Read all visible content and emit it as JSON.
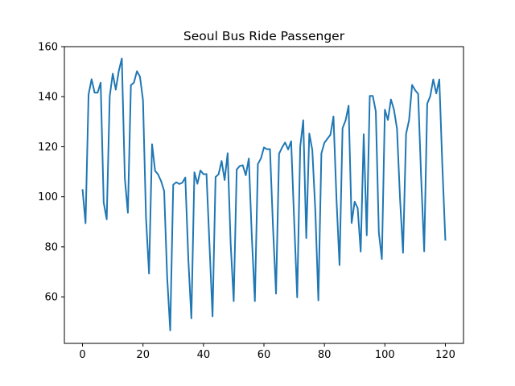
{
  "chart_data": {
    "type": "line",
    "title": "Seoul Bus Ride Passenger",
    "xlabel": "",
    "ylabel": "",
    "xlim": [
      -6,
      126
    ],
    "ylim": [
      41.4,
      160
    ],
    "x_ticks": [
      0,
      20,
      40,
      60,
      80,
      100,
      120
    ],
    "y_ticks": [
      60,
      80,
      100,
      120,
      140,
      160
    ],
    "grid": false,
    "legend": "none",
    "line_color": "#1f77b4",
    "series": [
      {
        "values": [
          103.0,
          89.4,
          140.8,
          147.0,
          141.6,
          141.6,
          145.6,
          97.7,
          91.0,
          140.1,
          149.2,
          142.8,
          150.3,
          155.3,
          107.3,
          93.6,
          144.6,
          145.6,
          150.2,
          148.0,
          138.6,
          91.6,
          69.3,
          121.0,
          110.4,
          108.9,
          106.2,
          102.3,
          67.7,
          46.6,
          104.8,
          105.8,
          105.1,
          105.6,
          107.7,
          74.9,
          51.4,
          109.8,
          105.2,
          110.5,
          109.0,
          109.1,
          80.6,
          52.2,
          107.9,
          109.0,
          114.3,
          106.7,
          117.4,
          81.1,
          58.3,
          110.9,
          112.3,
          112.6,
          108.6,
          115.3,
          83.9,
          58.3,
          113.1,
          115.3,
          119.7,
          119.0,
          119.0,
          87.9,
          61.3,
          117.2,
          119.7,
          121.7,
          118.9,
          122.2,
          90.3,
          59.8,
          120.0,
          130.6,
          83.5,
          125.3,
          118.7,
          94.3,
          58.6,
          117.3,
          121.6,
          123.2,
          124.8,
          132.1,
          98.9,
          72.7,
          127.4,
          130.5,
          136.4,
          89.5,
          98.0,
          95.5,
          78.1,
          125.0,
          84.6,
          140.3,
          140.3,
          134.1,
          85.7,
          75.1,
          134.8,
          130.7,
          138.9,
          134.8,
          127.3,
          99.5,
          77.6,
          125.1,
          130.6,
          144.7,
          142.6,
          141.1,
          107.5,
          78.2,
          137.2,
          140.2,
          146.9,
          141.3,
          146.9,
          112.6,
          82.5
        ]
      }
    ]
  }
}
